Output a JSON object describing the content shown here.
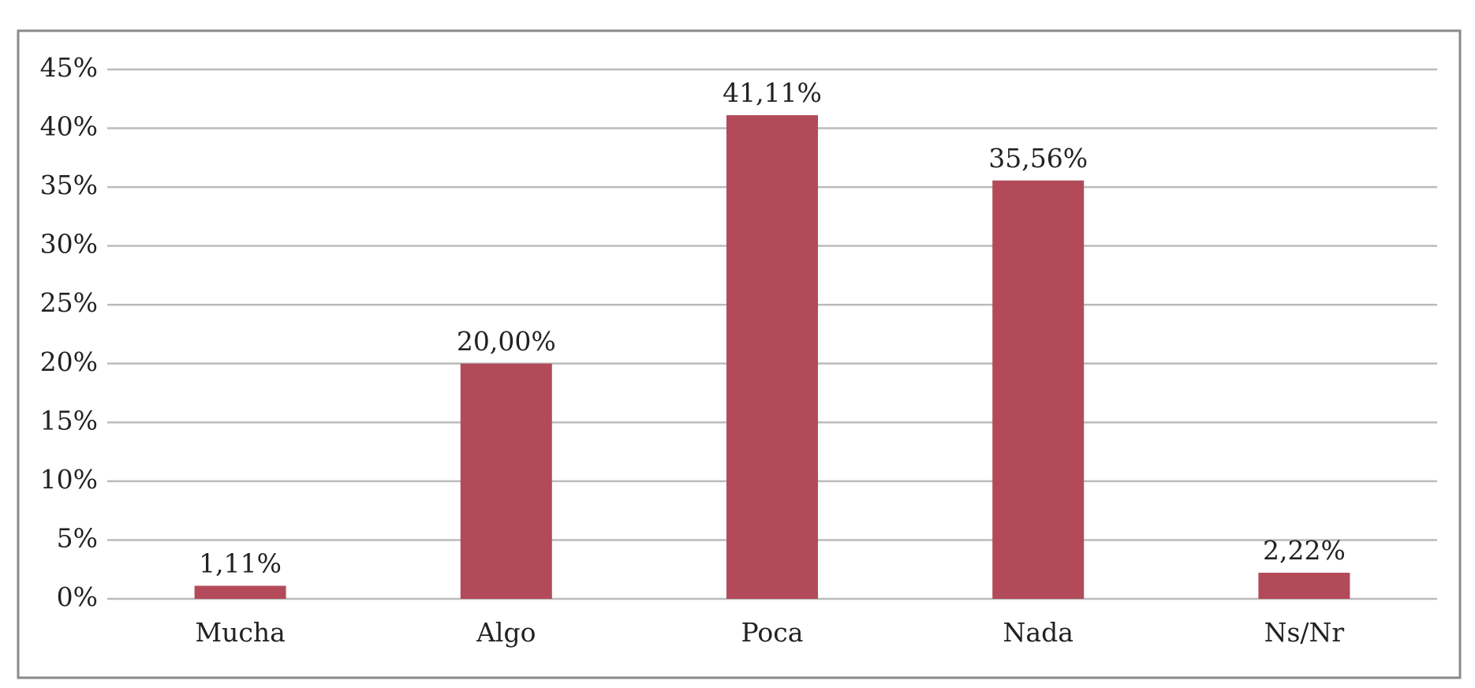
{
  "chart_data": {
    "type": "bar",
    "categories": [
      "Mucha",
      "Algo",
      "Poca",
      "Nada",
      "Ns/Nr"
    ],
    "values": [
      1.11,
      20,
      41.11,
      35.56,
      2.22
    ],
    "value_labels": [
      "1,11%",
      "20,00%",
      "41,11%",
      "35,56%",
      "2,22%"
    ],
    "color": "#b24a5a",
    "ylim": [
      0,
      45
    ],
    "yticks": [
      {
        "value": 0,
        "label": "0%"
      },
      {
        "value": 5,
        "label": "5%"
      },
      {
        "value": 10,
        "label": "10%"
      },
      {
        "value": 15,
        "label": "15%"
      },
      {
        "value": 20,
        "label": "20%"
      },
      {
        "value": 25,
        "label": "25%"
      },
      {
        "value": 30,
        "label": "30%"
      },
      {
        "value": 35,
        "label": "35%"
      },
      {
        "value": 40,
        "label": "40%"
      },
      {
        "value": 45,
        "label": "45%"
      }
    ],
    "grid": true
  }
}
